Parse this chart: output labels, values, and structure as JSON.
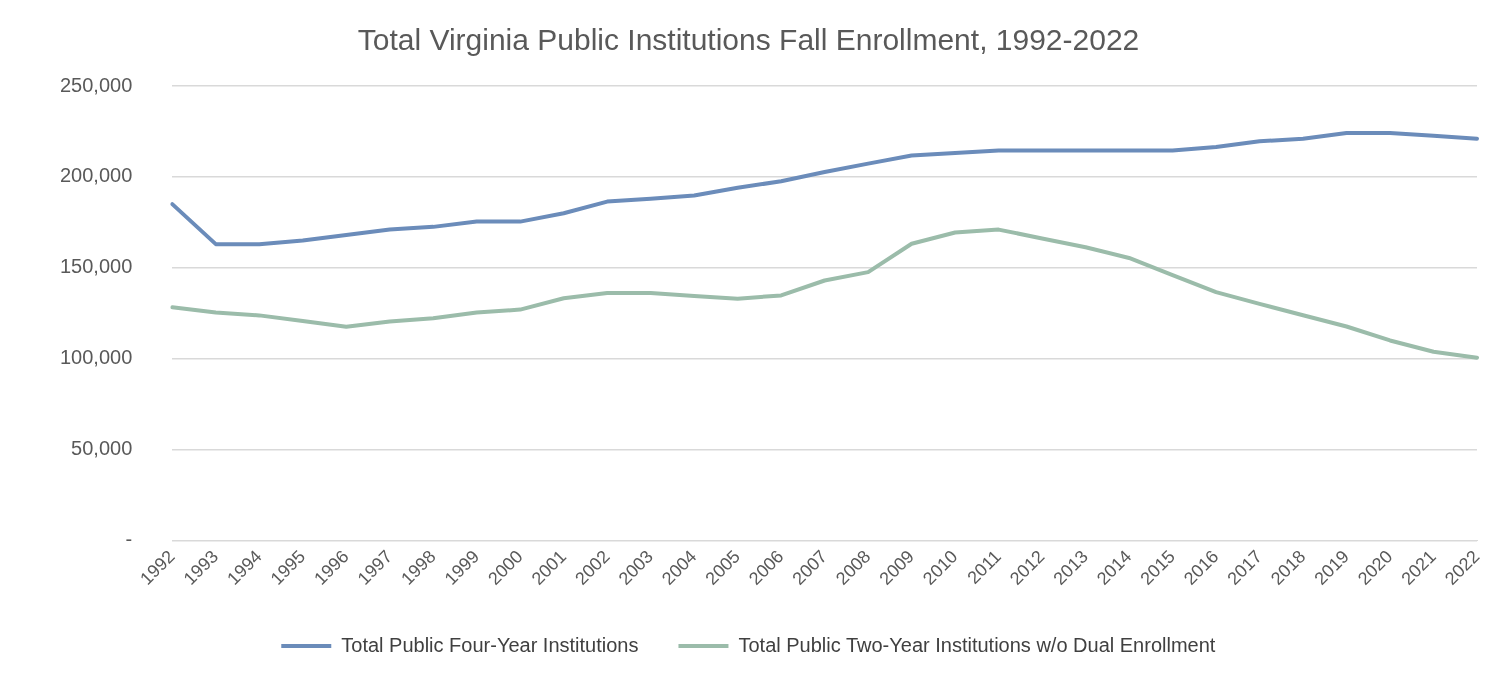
{
  "chart_data": {
    "type": "line",
    "title": "Total Virginia Public Institutions Fall Enrollment, 1992-2022",
    "categories": [
      "1992",
      "1993",
      "1994",
      "1995",
      "1996",
      "1997",
      "1998",
      "1999",
      "2000",
      "2001",
      "2002",
      "2003",
      "2004",
      "2005",
      "2006",
      "2007",
      "2008",
      "2009",
      "2010",
      "2011",
      "2012",
      "2013",
      "2014",
      "2015",
      "2016",
      "2017",
      "2018",
      "2019",
      "2020",
      "2021",
      "2022"
    ],
    "series": [
      {
        "name": "Total Public Four-Year Institutions",
        "color": "#6b8cba",
        "values": [
          185000,
          163000,
          163000,
          165000,
          168000,
          171000,
          172500,
          175400,
          175400,
          180000,
          186400,
          188000,
          189800,
          194000,
          197600,
          202700,
          207300,
          211800,
          213200,
          214500,
          214500,
          214500,
          214500,
          214500,
          216400,
          219600,
          221000,
          224200,
          224200,
          222600,
          221000
        ]
      },
      {
        "name": "Total Public Two-Year Institutions w/o Dual Enrollment",
        "color": "#9bbcaa",
        "values": [
          128300,
          125400,
          123800,
          120700,
          117500,
          120400,
          122200,
          125400,
          127000,
          133200,
          136100,
          136100,
          134500,
          133000,
          134800,
          143000,
          147600,
          163200,
          169400,
          171000,
          166100,
          161300,
          155400,
          146000,
          136600,
          130100,
          123900,
          117700,
          110000,
          103800,
          100500
        ]
      }
    ],
    "ylim": [
      0,
      250000
    ],
    "yticks": [
      {
        "value": 0,
        "label": "-"
      },
      {
        "value": 50000,
        "label": "50,000"
      },
      {
        "value": 100000,
        "label": "100,000"
      },
      {
        "value": 150000,
        "label": "150,000"
      },
      {
        "value": 200000,
        "label": "200,000"
      },
      {
        "value": 250000,
        "label": "250,000"
      }
    ],
    "grid": "y",
    "legend": "bottom",
    "marker": "none",
    "line_style": "solid"
  }
}
